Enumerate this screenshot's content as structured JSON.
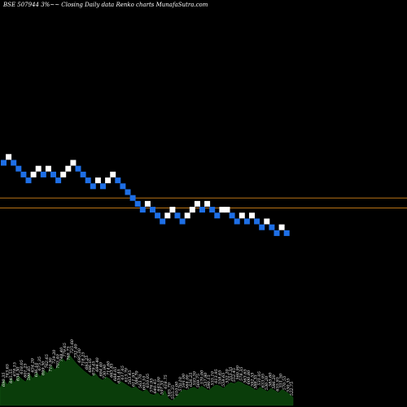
{
  "header": {
    "title": "BSE 507944  3%~~ Closing Daily data  Renko  charts MunafaSutra.com"
  },
  "colors": {
    "background": "#000000",
    "up_brick": "#ffffff",
    "down_brick": "#1e6fe6",
    "reference_line": "#b87316",
    "volume_fill": "#0a3d0a",
    "volume_stroke": "#155815"
  },
  "chart_data": {
    "type": "renko",
    "symbol": "BSE 507944",
    "brick_size_percent": 3,
    "title": "BSE 507944  3%~~ Closing Daily data  Renko  charts MunafaSutra.com",
    "bricks": [
      {
        "level": 10,
        "dir": "down"
      },
      {
        "level": 11,
        "dir": "up"
      },
      {
        "level": 10,
        "dir": "down"
      },
      {
        "level": 9,
        "dir": "down"
      },
      {
        "level": 8,
        "dir": "down"
      },
      {
        "level": 7,
        "dir": "down"
      },
      {
        "level": 8,
        "dir": "up"
      },
      {
        "level": 9,
        "dir": "up"
      },
      {
        "level": 8,
        "dir": "down"
      },
      {
        "level": 9,
        "dir": "up"
      },
      {
        "level": 8,
        "dir": "down"
      },
      {
        "level": 7,
        "dir": "down"
      },
      {
        "level": 8,
        "dir": "up"
      },
      {
        "level": 9,
        "dir": "up"
      },
      {
        "level": 10,
        "dir": "up"
      },
      {
        "level": 9,
        "dir": "down"
      },
      {
        "level": 8,
        "dir": "down"
      },
      {
        "level": 7,
        "dir": "down"
      },
      {
        "level": 6,
        "dir": "down"
      },
      {
        "level": 7,
        "dir": "up"
      },
      {
        "level": 6,
        "dir": "down"
      },
      {
        "level": 7,
        "dir": "up"
      },
      {
        "level": 8,
        "dir": "up"
      },
      {
        "level": 7,
        "dir": "down"
      },
      {
        "level": 6,
        "dir": "down"
      },
      {
        "level": 5,
        "dir": "down"
      },
      {
        "level": 4,
        "dir": "down"
      },
      {
        "level": 3,
        "dir": "down"
      },
      {
        "level": 2,
        "dir": "down"
      },
      {
        "level": 3,
        "dir": "up"
      },
      {
        "level": 2,
        "dir": "down"
      },
      {
        "level": 1,
        "dir": "down"
      },
      {
        "level": 0,
        "dir": "down"
      },
      {
        "level": 1,
        "dir": "up"
      },
      {
        "level": 2,
        "dir": "up"
      },
      {
        "level": 1,
        "dir": "down"
      },
      {
        "level": 0,
        "dir": "down"
      },
      {
        "level": 1,
        "dir": "up"
      },
      {
        "level": 2,
        "dir": "up"
      },
      {
        "level": 3,
        "dir": "up"
      },
      {
        "level": 2,
        "dir": "down"
      },
      {
        "level": 3,
        "dir": "up"
      },
      {
        "level": 2,
        "dir": "down"
      },
      {
        "level": 1,
        "dir": "down"
      },
      {
        "level": 2,
        "dir": "up"
      },
      {
        "level": 2,
        "dir": "up"
      },
      {
        "level": 1,
        "dir": "down"
      },
      {
        "level": 0,
        "dir": "down"
      },
      {
        "level": 1,
        "dir": "up"
      },
      {
        "level": 0,
        "dir": "down"
      },
      {
        "level": 1,
        "dir": "up"
      },
      {
        "level": 0,
        "dir": "down"
      },
      {
        "level": -1,
        "dir": "down"
      },
      {
        "level": 0,
        "dir": "up"
      },
      {
        "level": -1,
        "dir": "down"
      },
      {
        "level": -2,
        "dir": "down"
      },
      {
        "level": -1,
        "dir": "up"
      },
      {
        "level": -2,
        "dir": "down"
      }
    ],
    "reference_lines": [
      {
        "level": 4.0
      },
      {
        "level": 2.3
      }
    ],
    "volume_labels": [
      "690.35",
      "743.65",
      "645.55",
      "678.15",
      "634.30",
      "618.05",
      "601.25",
      "599.85",
      "634.20",
      "636.10",
      "675.35",
      "699.30",
      "762.65",
      "710.90",
      "729.20",
      "703.40",
      "748.40",
      "779.65",
      "768.75",
      "725.60",
      "732.40",
      "695.30",
      "718.25",
      "693.25",
      "686.05",
      "679.45",
      "694.40",
      "684.40",
      "730.90",
      "714.60",
      "663.85",
      "688.05",
      "634.45",
      "617.65",
      "613.70",
      "563.45",
      "611.95",
      "586.70",
      "563.70",
      "605.10",
      "610.05",
      "576.95",
      "640.45",
      "645.00",
      "597.35",
      "618.75",
      "585.70",
      "555.35",
      "610.00",
      "570.10",
      "591.00",
      "564.00",
      "626.25",
      "593.30",
      "569.75",
      "570.00",
      "537.90",
      "590.15",
      "555.10",
      "613.95",
      "558.65",
      "558.65",
      "532.20",
      "553.35",
      "552.45",
      "560.90",
      "578.35",
      "563.65",
      "600.80",
      "592.55",
      "588.35",
      "531.05",
      "633.95",
      "530.20",
      "585.60",
      "586.20",
      "655.95",
      "551.50",
      "570.55",
      "530.35",
      "522.75"
    ],
    "volume_profile": [
      0.3,
      0.45,
      0.36,
      0.48,
      0.4,
      0.52,
      0.46,
      0.41,
      0.55,
      0.47,
      0.58,
      0.5,
      0.62,
      0.56,
      0.7,
      0.62,
      0.74,
      0.82,
      0.76,
      0.88,
      0.8,
      0.72,
      0.66,
      0.6,
      0.55,
      0.5,
      0.56,
      0.48,
      0.44,
      0.5,
      0.46,
      0.4,
      0.36,
      0.42,
      0.38,
      0.34,
      0.3,
      0.33,
      0.27,
      0.24,
      0.28,
      0.2,
      0.18,
      0.22,
      0.16,
      0.26,
      0.12,
      0.08,
      0.14,
      0.22,
      0.28,
      0.26,
      0.3,
      0.32,
      0.28,
      0.34,
      0.3,
      0.26,
      0.32,
      0.36,
      0.34,
      0.3,
      0.36,
      0.4,
      0.38,
      0.42,
      0.4,
      0.36,
      0.34,
      0.3,
      0.26,
      0.32,
      0.28,
      0.24,
      0.3,
      0.26,
      0.22,
      0.28,
      0.24,
      0.2,
      0.14
    ]
  }
}
